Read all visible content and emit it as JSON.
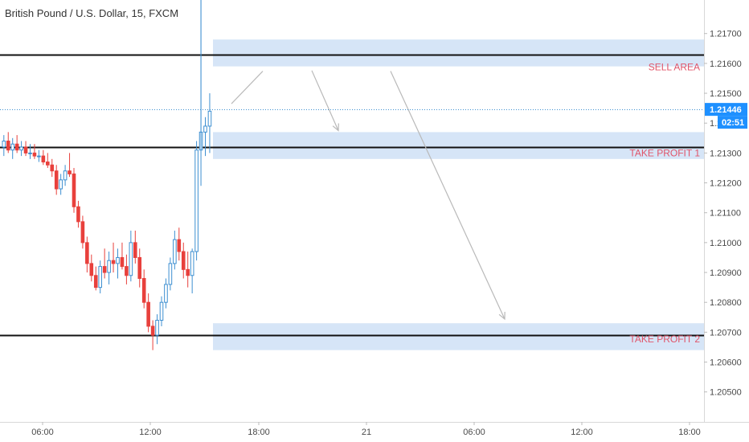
{
  "title": "British Pound / U.S. Dollar, 15, FXCM",
  "colors": {
    "up": "#3d8fd1",
    "down": "#e8403c",
    "zone": "#cfe0f6",
    "level": "#111111",
    "arrow": "#b9b9b9",
    "tag": "#1e90ff",
    "zone_label": "#e0556a"
  },
  "chart_data": {
    "type": "candlestick",
    "instrument": "British Pound / U.S. Dollar",
    "timeframe": "15",
    "source": "FXCM",
    "ylim": [
      1.2044,
      1.2178
    ],
    "x_ticks": [
      "06:00",
      "12:00",
      "18:00",
      "21",
      "06:00",
      "12:00",
      "18:00"
    ],
    "y_ticks": [
      "1.20500",
      "1.20600",
      "1.20700",
      "1.20800",
      "1.20900",
      "1.21000",
      "1.21100",
      "1.21200",
      "1.21300",
      "1.21400",
      "1.21500",
      "1.21600",
      "1.21700"
    ],
    "last_price": "1.21446",
    "countdown": "02:51",
    "level_lines": [
      1.2163,
      1.2132,
      1.2069
    ],
    "zones": [
      {
        "label": "SELL AREA",
        "low": 1.2159,
        "high": 1.2168
      },
      {
        "label": "TAKE PROFIT 1",
        "low": 1.2128,
        "high": 1.2137
      },
      {
        "label": "TAKE PROFIT 2",
        "low": 1.2064,
        "high": 1.2073
      }
    ],
    "candles": [
      [
        1.2132,
        1.2136,
        1.2129,
        1.2134
      ],
      [
        1.2134,
        1.2137,
        1.213,
        1.2131
      ],
      [
        1.2131,
        1.2135,
        1.2128,
        1.2133
      ],
      [
        1.2133,
        1.2136,
        1.213,
        1.2131
      ],
      [
        1.2131,
        1.2134,
        1.2129,
        1.2132
      ],
      [
        1.2132,
        1.2134,
        1.2129,
        1.213
      ],
      [
        1.213,
        1.2133,
        1.2128,
        1.213
      ],
      [
        1.213,
        1.2133,
        1.2128,
        1.2129
      ],
      [
        1.2129,
        1.2131,
        1.2127,
        1.2129
      ],
      [
        1.2129,
        1.2131,
        1.2126,
        1.2127
      ],
      [
        1.2127,
        1.213,
        1.2125,
        1.2126
      ],
      [
        1.2126,
        1.2128,
        1.2122,
        1.2124
      ],
      [
        1.2124,
        1.2126,
        1.2116,
        1.2118
      ],
      [
        1.2118,
        1.2123,
        1.2116,
        1.2121
      ],
      [
        1.2121,
        1.2126,
        1.2119,
        1.2124
      ],
      [
        1.2124,
        1.213,
        1.2122,
        1.2123
      ],
      [
        1.2123,
        1.2125,
        1.211,
        1.2112
      ],
      [
        1.2112,
        1.2114,
        1.2105,
        1.2107
      ],
      [
        1.2107,
        1.2109,
        1.2098,
        1.21
      ],
      [
        1.21,
        1.2102,
        1.209,
        1.2093
      ],
      [
        1.2093,
        1.2096,
        1.2087,
        1.2089
      ],
      [
        1.2089,
        1.2092,
        1.2084,
        1.2085
      ],
      [
        1.2085,
        1.2094,
        1.2083,
        1.2092
      ],
      [
        1.2092,
        1.2098,
        1.2088,
        1.209
      ],
      [
        1.209,
        1.2097,
        1.2086,
        1.2094
      ],
      [
        1.2094,
        1.21,
        1.209,
        1.2093
      ],
      [
        1.2093,
        1.2098,
        1.2088,
        1.2095
      ],
      [
        1.2095,
        1.21,
        1.2091,
        1.2092
      ],
      [
        1.2092,
        1.2096,
        1.2086,
        1.2089
      ],
      [
        1.2089,
        1.2104,
        1.2087,
        1.21
      ],
      [
        1.21,
        1.2104,
        1.2093,
        1.2095
      ],
      [
        1.2095,
        1.2098,
        1.2085,
        1.2088
      ],
      [
        1.2088,
        1.2091,
        1.2078,
        1.208
      ],
      [
        1.208,
        1.2083,
        1.207,
        1.2072
      ],
      [
        1.2072,
        1.2074,
        1.2064,
        1.2069
      ],
      [
        1.2069,
        1.2076,
        1.2066,
        1.2074
      ],
      [
        1.2074,
        1.2082,
        1.2072,
        1.208
      ],
      [
        1.208,
        1.2088,
        1.2078,
        1.2086
      ],
      [
        1.2086,
        1.2095,
        1.2084,
        1.2093
      ],
      [
        1.2093,
        1.2104,
        1.2091,
        1.2101
      ],
      [
        1.2101,
        1.2105,
        1.2094,
        1.2097
      ],
      [
        1.2097,
        1.21,
        1.2088,
        1.2091
      ],
      [
        1.2091,
        1.2097,
        1.2085,
        1.2089
      ],
      [
        1.2089,
        1.2098,
        1.2083,
        1.2097
      ],
      [
        1.2097,
        1.2134,
        1.2094,
        1.2131
      ],
      [
        1.2131,
        1.2182,
        1.2119,
        1.2137
      ],
      [
        1.2137,
        1.2142,
        1.2129,
        1.2139
      ],
      [
        1.2139,
        1.215,
        1.213,
        1.2144
      ]
    ]
  }
}
